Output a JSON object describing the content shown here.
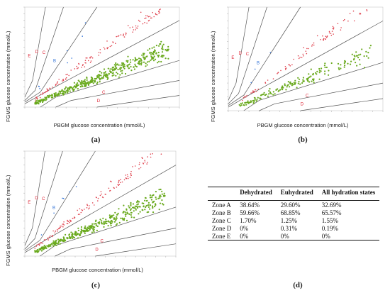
{
  "axes": {
    "ylabel": "FGMS glucose concentration (mmol/L)",
    "xlabel": "PBGM glucose concentration (mmol/L)"
  },
  "zone_letters": [
    "A",
    "B",
    "C",
    "D",
    "E"
  ],
  "colors": {
    "zoneA": "#6aaa1e",
    "zoneB": "#e0434f",
    "zoneC": "#2c6fd6",
    "zoneD": "#333333",
    "gridline": "#555555"
  },
  "chart_data": [
    {
      "type": "scatter",
      "panel": "(a)",
      "xlim": [
        0,
        30
      ],
      "ylim": [
        0,
        30
      ],
      "series": [
        {
          "name": "",
          "zone": "A",
          "generated_count": 420
        },
        {
          "name": "",
          "zone": "B",
          "generated_count": 150
        },
        {
          "name": "",
          "zone": "C",
          "generated_count": 8
        }
      ]
    },
    {
      "type": "scatter",
      "panel": "(b)",
      "xlim": [
        0,
        30
      ],
      "ylim": [
        0,
        30
      ],
      "series": [
        {
          "name": "",
          "zone": "A",
          "generated_count": 170
        },
        {
          "name": "",
          "zone": "B",
          "generated_count": 90
        },
        {
          "name": "",
          "zone": "C",
          "generated_count": 3
        }
      ]
    },
    {
      "type": "scatter",
      "panel": "(c)",
      "xlim": [
        0,
        30
      ],
      "ylim": [
        0,
        30
      ],
      "series": [
        {
          "name": "",
          "zone": "A",
          "generated_count": 380
        },
        {
          "name": "",
          "zone": "B",
          "generated_count": 140
        },
        {
          "name": "",
          "zone": "C",
          "generated_count": 6
        }
      ]
    },
    {
      "type": "table",
      "panel": "(d)",
      "columns": [
        "",
        "Dehydrated",
        "Euhydrated",
        "All hydration states"
      ],
      "rows": [
        [
          "Zone A",
          "38.64%",
          "29.60%",
          "32.69%"
        ],
        [
          "Zone B",
          "59.66%",
          "68.85%",
          "65.57%"
        ],
        [
          "Zone C",
          "1.70%",
          "1.25%",
          "1.55%"
        ],
        [
          "Zone D",
          "0%",
          "0.31%",
          "0.19%"
        ],
        [
          "Zone E",
          "0%",
          "0%",
          "0%"
        ]
      ]
    }
  ],
  "panel_labels": [
    "(a)",
    "(b)",
    "(c)",
    "(d)"
  ]
}
